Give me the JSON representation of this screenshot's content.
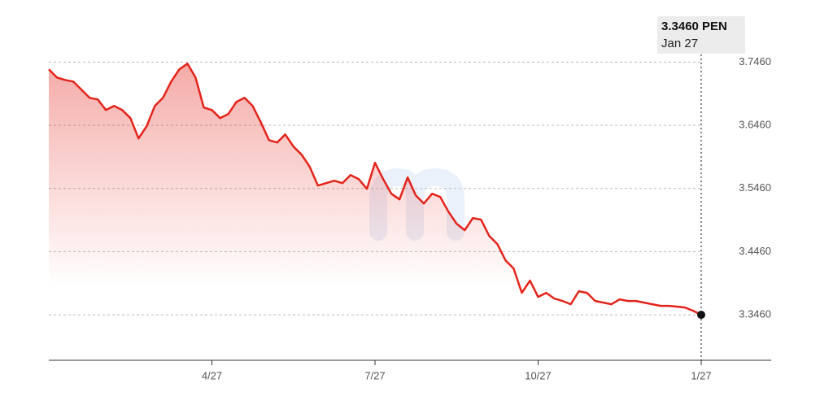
{
  "chart_data": {
    "type": "line",
    "annotation": {
      "value": "3.3460 PEN",
      "date": "Jan 27"
    },
    "categories": [
      null,
      null,
      null,
      null,
      null,
      null,
      null,
      null,
      null,
      null,
      null,
      null,
      null,
      null,
      null,
      null,
      null,
      null,
      null,
      null,
      "4/27",
      null,
      null,
      null,
      null,
      null,
      null,
      null,
      null,
      null,
      null,
      null,
      null,
      null,
      null,
      null,
      null,
      null,
      null,
      null,
      "7/27",
      null,
      null,
      null,
      null,
      null,
      null,
      null,
      null,
      null,
      null,
      null,
      null,
      null,
      null,
      null,
      null,
      null,
      null,
      null,
      "10/27",
      null,
      null,
      null,
      null,
      null,
      null,
      null,
      null,
      null,
      null,
      null,
      null,
      null,
      null,
      null,
      null,
      null,
      null,
      null,
      "1/27"
    ],
    "series": [
      {
        "color": "#e3241b",
        "values": [
          3.7344,
          3.7216,
          3.7177,
          3.7151,
          3.7023,
          3.6894,
          3.6868,
          3.6701,
          3.6765,
          3.6701,
          3.6573,
          3.6251,
          3.6444,
          3.6765,
          3.6894,
          3.7151,
          3.7344,
          3.7434,
          3.7216,
          3.674,
          3.6701,
          3.6573,
          3.6637,
          3.683,
          3.6894,
          3.6765,
          3.6508,
          3.6225,
          3.6187,
          3.6315,
          3.6122,
          3.5994,
          3.5801,
          3.5505,
          3.5544,
          3.5582,
          3.5544,
          3.5672,
          3.5608,
          3.5454,
          3.5865,
          3.5608,
          3.5376,
          3.5286,
          3.5634,
          3.5351,
          3.5222,
          3.5376,
          3.5325,
          3.5093,
          3.4901,
          3.4798,
          3.4991,
          3.4965,
          3.4708,
          3.4579,
          3.4322,
          3.4193,
          3.3807,
          3.4,
          3.3743,
          3.3807,
          3.3717,
          3.3679,
          3.3627,
          3.3833,
          3.3807,
          3.3679,
          3.3653,
          3.3627,
          3.3704,
          3.3679,
          3.3679,
          3.3653,
          3.3627,
          3.3601,
          3.3601,
          3.3589,
          3.3576,
          3.3524,
          3.346
        ]
      }
    ],
    "ylim": [
      3.274,
      3.767
    ],
    "yticks": [
      {
        "value": 3.346,
        "label": "3.3460"
      },
      {
        "value": 3.446,
        "label": "3.4460"
      },
      {
        "value": 3.546,
        "label": "3.5460"
      },
      {
        "value": 3.646,
        "label": "3.6460"
      },
      {
        "value": 3.746,
        "label": "3.7460"
      }
    ],
    "grid": true
  }
}
